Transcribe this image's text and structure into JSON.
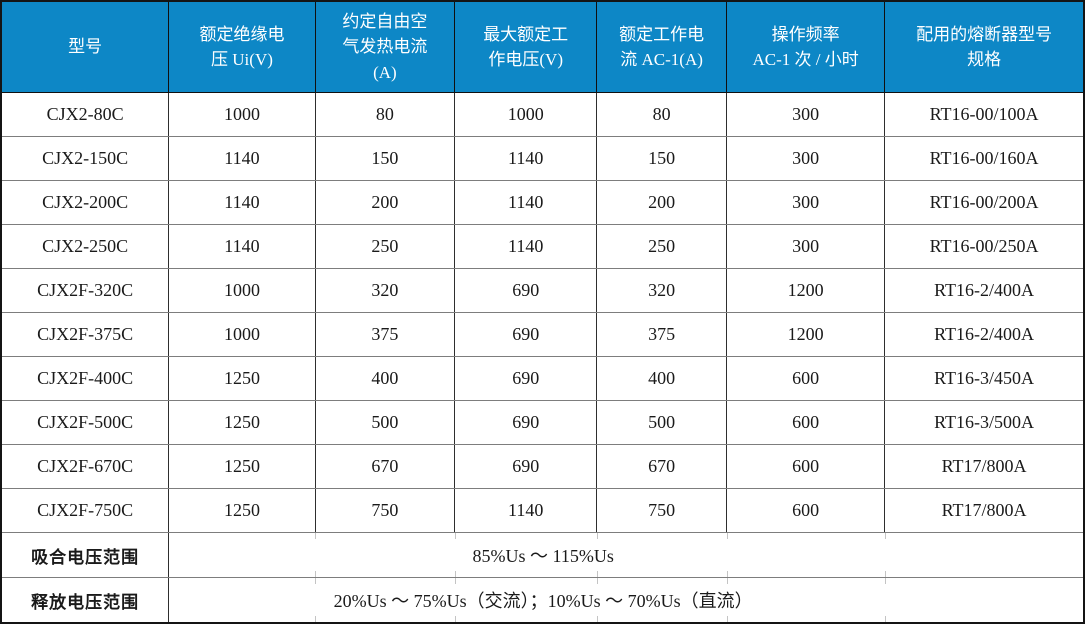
{
  "table": {
    "columns": [
      "型号",
      "额定绝缘电\n压 Ui(V)",
      "约定自由空\n气发热电流\n(A)",
      "最大额定工\n作电压(V)",
      "额定工作电\n流 AC-1(A)",
      "操作频率\nAC-1 次 / 小时",
      "配用的熔断器型号\n规格"
    ],
    "rows": [
      {
        "model": "CJX2-80C",
        "values": [
          "1000",
          "80",
          "1000",
          "80",
          "300",
          "RT16-00/100A"
        ]
      },
      {
        "model": "CJX2-150C",
        "values": [
          "1140",
          "150",
          "1140",
          "150",
          "300",
          "RT16-00/160A"
        ]
      },
      {
        "model": "CJX2-200C",
        "values": [
          "1140",
          "200",
          "1140",
          "200",
          "300",
          "RT16-00/200A"
        ]
      },
      {
        "model": "CJX2-250C",
        "values": [
          "1140",
          "250",
          "1140",
          "250",
          "300",
          "RT16-00/250A"
        ]
      },
      {
        "model": "CJX2F-320C",
        "values": [
          "1000",
          "320",
          "690",
          "320",
          "1200",
          "RT16-2/400A"
        ]
      },
      {
        "model": "CJX2F-375C",
        "values": [
          "1000",
          "375",
          "690",
          "375",
          "1200",
          "RT16-2/400A"
        ]
      },
      {
        "model": "CJX2F-400C",
        "values": [
          "1250",
          "400",
          "690",
          "400",
          "600",
          "RT16-3/450A"
        ]
      },
      {
        "model": "CJX2F-500C",
        "values": [
          "1250",
          "500",
          "690",
          "500",
          "600",
          "RT16-3/500A"
        ]
      },
      {
        "model": "CJX2F-670C",
        "values": [
          "1250",
          "670",
          "690",
          "670",
          "600",
          "RT17/800A"
        ]
      },
      {
        "model": "CJX2F-750C",
        "values": [
          "1250",
          "750",
          "1140",
          "750",
          "600",
          "RT17/800A"
        ]
      }
    ],
    "footer": [
      {
        "label": "吸合电压范围",
        "value": "85%Us ～ 115%Us"
      },
      {
        "label": "释放电压范围",
        "value": "20%Us ～ 75%Us（交流）；10%Us ～ 70%Us（直流）"
      }
    ]
  },
  "colors": {
    "header_bg": "#0d87c6",
    "header_text": "#ffffff",
    "outer_border": "#141414",
    "vertical_rule": "#2e2e2e",
    "horizontal_rule": "#7d7d7d",
    "body_text": "#1a1a1a"
  }
}
